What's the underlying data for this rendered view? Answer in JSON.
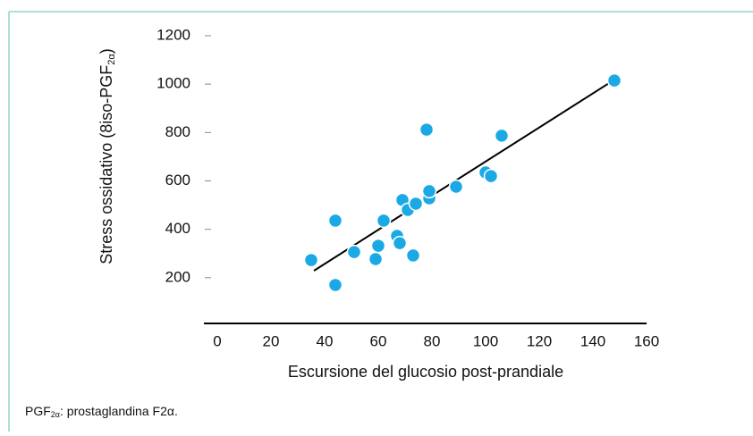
{
  "chart_data": {
    "type": "scatter",
    "x_label": "Escursione del glucosio post-prandiale",
    "y_label": {
      "text": "Stress ossidativo (8iso-PGF",
      "sub": "2α",
      "end": ")"
    },
    "footnote": {
      "text": "PGF",
      "sub": "2α",
      "end": ": prostaglandina F2α."
    },
    "x": [
      35,
      44,
      44,
      51,
      59,
      60,
      62,
      67,
      68,
      69,
      71,
      73,
      74,
      78,
      79,
      79,
      89,
      100,
      102,
      106,
      148
    ],
    "y": [
      273,
      170,
      436,
      306,
      277,
      332,
      436,
      373,
      343,
      521,
      480,
      292,
      506,
      812,
      528,
      558,
      576,
      635,
      620,
      787,
      1015
    ],
    "color": "#1ba9e6",
    "trend_line": {
      "x": [
        36,
        146
      ],
      "y": [
        229,
        1004
      ],
      "color": "#000000"
    },
    "xlim": [
      -5,
      160
    ],
    "ylim": [
      0,
      1200
    ],
    "xticks": [
      0,
      20,
      40,
      60,
      80,
      100,
      120,
      140,
      160
    ],
    "yticks": [
      200,
      400,
      600,
      800,
      1000,
      1200
    ],
    "grid": false
  }
}
